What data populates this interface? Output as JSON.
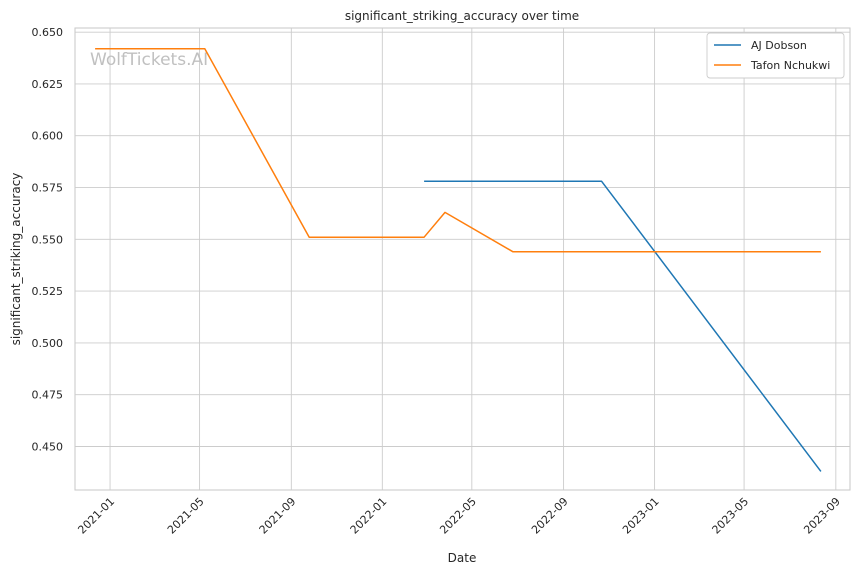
{
  "chart_data": {
    "type": "line",
    "title": "significant_striking_accuracy over time",
    "xlabel": "Date",
    "ylabel": "significant_striking_accuracy",
    "watermark": "WolfTickets.AI",
    "x_ticks": [
      "2021-01",
      "2021-05",
      "2021-09",
      "2022-01",
      "2022-05",
      "2022-09",
      "2023-01",
      "2023-05",
      "2023-09"
    ],
    "y_ticks": [
      "0.450",
      "0.475",
      "0.500",
      "0.525",
      "0.550",
      "0.575",
      "0.600",
      "0.625",
      "0.650"
    ],
    "ylim": [
      0.429,
      0.652
    ],
    "xlim": [
      "2020-11-15",
      "2023-09-20"
    ],
    "grid": true,
    "legend_position": "top-right",
    "series": [
      {
        "name": "AJ Dobson",
        "color": "#1f77b4",
        "points": [
          {
            "x": "2022-02-26",
            "y": 0.578
          },
          {
            "x": "2022-10-22",
            "y": 0.578
          },
          {
            "x": "2023-08-12",
            "y": 0.438
          }
        ]
      },
      {
        "name": "Tafon Nchukwi",
        "color": "#ff7f0e",
        "points": [
          {
            "x": "2020-12-12",
            "y": 0.642
          },
          {
            "x": "2021-05-08",
            "y": 0.642
          },
          {
            "x": "2021-09-25",
            "y": 0.551
          },
          {
            "x": "2022-02-26",
            "y": 0.551
          },
          {
            "x": "2022-03-26",
            "y": 0.563
          },
          {
            "x": "2022-06-25",
            "y": 0.544
          },
          {
            "x": "2022-10-22",
            "y": 0.544
          },
          {
            "x": "2023-08-12",
            "y": 0.544
          }
        ]
      }
    ]
  }
}
